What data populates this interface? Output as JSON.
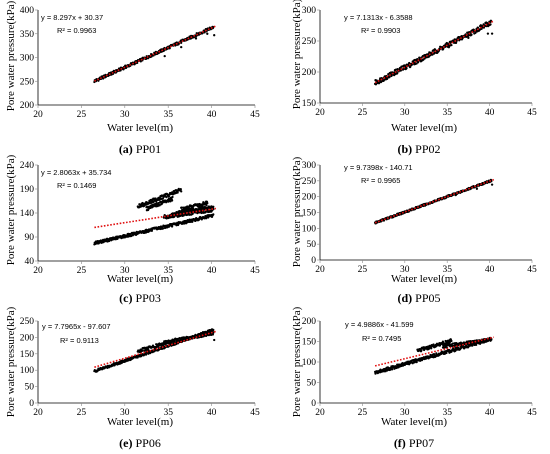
{
  "chart_data": [
    {
      "type": "scatter",
      "panel_label": "(a)",
      "caption": "PP01",
      "xlabel": "Water level(m)",
      "ylabel": "Pore water pressure(kPa)",
      "xlim": [
        20,
        45
      ],
      "ylim": [
        200,
        400
      ],
      "xticks": [
        20,
        25,
        30,
        35,
        40,
        45
      ],
      "yticks": [
        200,
        250,
        300,
        350,
        400
      ],
      "equation": "y = 8.297x + 30.37",
      "r2": "R² = 0.9963",
      "trend": {
        "slope": 8.297,
        "intercept": 30.37,
        "x_range": [
          26.5,
          40.5
        ]
      },
      "series": [
        {
          "x_range": [
            26.5,
            40.2
          ],
          "slope": 8.297,
          "intercept": 30.37,
          "spread": 3
        }
      ],
      "outliers": [
        [
          34.6,
          303
        ],
        [
          36.5,
          322
        ],
        [
          38.2,
          340
        ],
        [
          39.5,
          350
        ],
        [
          40.3,
          347
        ]
      ]
    },
    {
      "type": "scatter",
      "panel_label": "(b)",
      "caption": "PP02",
      "xlabel": "Water level(m)",
      "ylabel": "Pore water pressure(kPa)",
      "xlim": [
        20,
        45
      ],
      "ylim": [
        150,
        300
      ],
      "xticks": [
        20,
        25,
        30,
        35,
        40,
        45
      ],
      "yticks": [
        150,
        200,
        250,
        300
      ],
      "equation": "y = 7.1313x - 6.3588",
      "r2": "R² = 0.9903",
      "trend": {
        "slope": 7.1313,
        "intercept": -6.3588,
        "x_range": [
          26.5,
          40.5
        ]
      },
      "series": [
        {
          "x_range": [
            26.5,
            40.2
          ],
          "slope": 7.1313,
          "intercept": -6.3588,
          "spread": 4
        }
      ],
      "outliers": [
        [
          33.5,
          231
        ],
        [
          35.2,
          240
        ],
        [
          37.5,
          255
        ],
        [
          39.8,
          262
        ],
        [
          40.3,
          262
        ]
      ]
    },
    {
      "type": "scatter",
      "panel_label": "(c)",
      "caption": "PP03",
      "xlabel": "Water level(m)",
      "ylabel": "Pore water pressure(kPa)",
      "xlim": [
        20,
        45
      ],
      "ylim": [
        40,
        240
      ],
      "xticks": [
        20,
        25,
        30,
        35,
        40,
        45
      ],
      "yticks": [
        40,
        90,
        140,
        190,
        240
      ],
      "equation": "y = 2.8063x + 35.734",
      "r2": "R² = 0.1469",
      "trend": {
        "slope": 2.8063,
        "intercept": 35.734,
        "x_range": [
          26.5,
          40.5
        ]
      },
      "series": [
        {
          "x_range": [
            26.5,
            40.2
          ],
          "slope": 4.2,
          "intercept": -34,
          "spread": 3
        },
        {
          "x_range": [
            31.5,
            36.5
          ],
          "slope": 7.0,
          "intercept": -67,
          "spread": 4
        },
        {
          "x_range": [
            32.5,
            35.5
          ],
          "slope": 6.8,
          "intercept": -72,
          "spread": 4
        },
        {
          "x_range": [
            34.5,
            40.2
          ],
          "slope": 2.6,
          "intercept": 42,
          "spread": 4
        },
        {
          "x_range": [
            35.5,
            40.2
          ],
          "slope": 3.0,
          "intercept": 32,
          "spread": 3
        },
        {
          "x_range": [
            36.5,
            39.5
          ],
          "slope": 4.5,
          "intercept": -17,
          "spread": 4
        }
      ],
      "outliers": []
    },
    {
      "type": "scatter",
      "panel_label": "(d)",
      "caption": "PP05",
      "xlabel": "Water level(m)",
      "ylabel": "Pore water pressure(kPa)",
      "xlim": [
        20,
        45
      ],
      "ylim": [
        0,
        300
      ],
      "xticks": [
        20,
        25,
        30,
        35,
        40,
        45
      ],
      "yticks": [
        0,
        50,
        100,
        150,
        200,
        250,
        300
      ],
      "equation": "y = 9.7398x - 140.71",
      "r2": "R² = 0.9965",
      "trend": {
        "slope": 9.7398,
        "intercept": -140.71,
        "x_range": [
          26.5,
          40.5
        ]
      },
      "series": [
        {
          "x_range": [
            26.5,
            40.2
          ],
          "slope": 9.7398,
          "intercept": -140.71,
          "spread": 3
        }
      ],
      "outliers": [
        [
          36.0,
          205
        ],
        [
          38.5,
          225
        ],
        [
          40.3,
          238
        ]
      ]
    },
    {
      "type": "scatter",
      "panel_label": "(e)",
      "caption": "PP06",
      "xlabel": "Water level(m)",
      "ylabel": "Pore water pressure(kPa)",
      "xlim": [
        20,
        45
      ],
      "ylim": [
        0,
        250
      ],
      "xticks": [
        20,
        25,
        30,
        35,
        40,
        45
      ],
      "yticks": [
        0,
        50,
        100,
        150,
        200,
        250
      ],
      "equation": "y = 7.7965x - 97.607",
      "r2": "R² = 0.9113",
      "trend": {
        "slope": 7.7965,
        "intercept": -97.607,
        "x_range": [
          26.5,
          40.5
        ]
      },
      "series": [
        {
          "x_range": [
            26.5,
            40.2
          ],
          "slope": 9.2,
          "intercept": -147,
          "spread": 4
        },
        {
          "x_range": [
            31.5,
            35.5
          ],
          "slope": 7.5,
          "intercept": -78,
          "spread": 5
        },
        {
          "x_range": [
            34.5,
            40.2
          ],
          "slope": 5.0,
          "intercept": 12,
          "spread": 5
        }
      ],
      "outliers": [
        [
          40.3,
          192
        ]
      ]
    },
    {
      "type": "scatter",
      "panel_label": "(f)",
      "caption": "PP07",
      "xlabel": "Water level(m)",
      "ylabel": "Pore water pressure(kPa)",
      "xlim": [
        20,
        45
      ],
      "ylim": [
        0,
        200
      ],
      "xticks": [
        20,
        25,
        30,
        35,
        40,
        45
      ],
      "yticks": [
        0,
        50,
        100,
        150,
        200
      ],
      "equation": "y = 4.9886x - 41.599",
      "r2": "R² = 0.7495",
      "trend": {
        "slope": 4.9886,
        "intercept": -41.599,
        "x_range": [
          26.5,
          40.5
        ]
      },
      "series": [
        {
          "x_range": [
            26.5,
            40.2
          ],
          "slope": 6.0,
          "intercept": -85,
          "spread": 4
        },
        {
          "x_range": [
            31.5,
            35.5
          ],
          "slope": 6.2,
          "intercept": -68,
          "spread": 4
        },
        {
          "x_range": [
            34.5,
            40.2
          ],
          "slope": 3.0,
          "intercept": 34,
          "spread": 4
        }
      ],
      "outliers": []
    }
  ],
  "colors": {
    "points": "#000000",
    "trendline": "#e01010",
    "axis": "#000000",
    "tick": "#888888"
  }
}
